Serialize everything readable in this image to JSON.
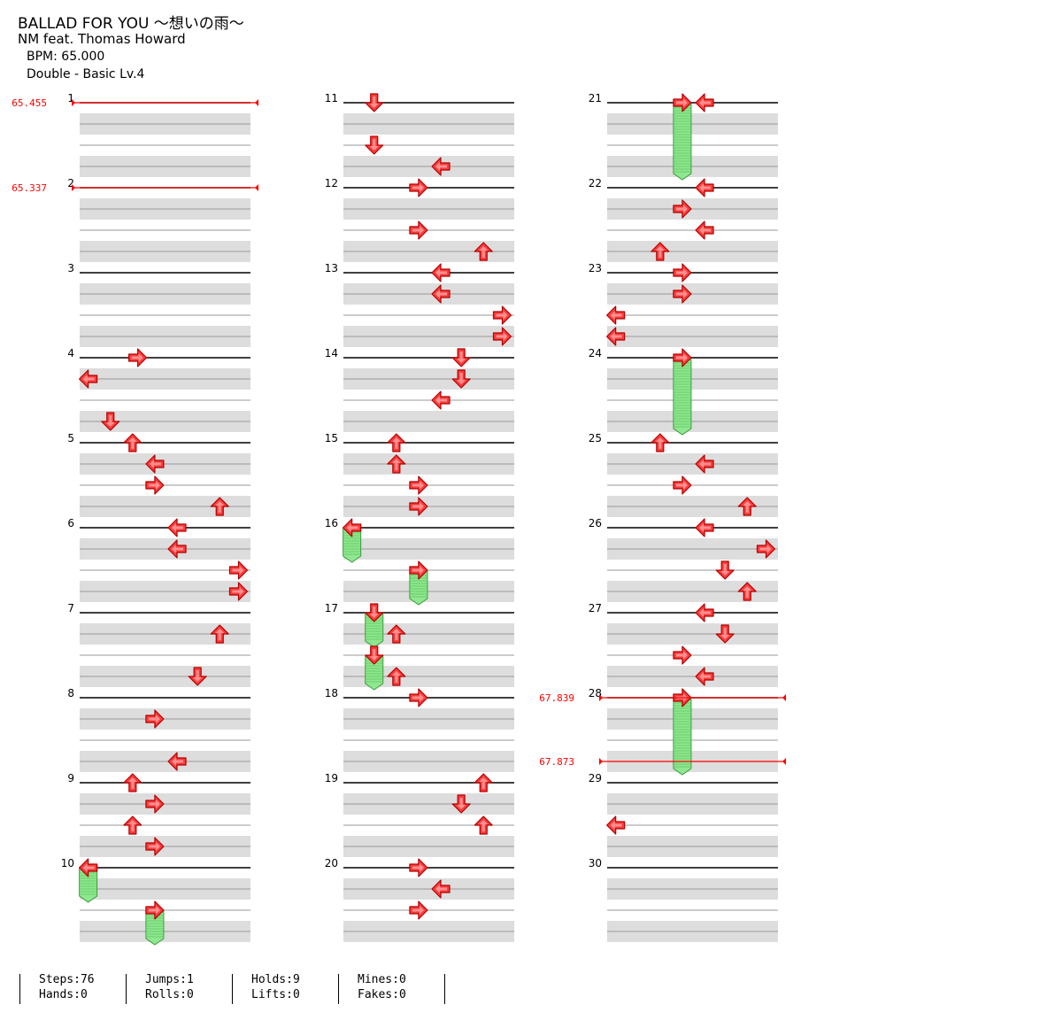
{
  "song": {
    "title": "BALLAD FOR YOU ～想いの雨～",
    "artist": "NM feat. Thomas Howard",
    "bpm_label": "BPM: 65.000",
    "difficulty_label": "Double - Basic  Lv.4"
  },
  "columns": [
    {
      "first_measure": 1,
      "last_measure": 10
    },
    {
      "first_measure": 11,
      "last_measure": 20
    },
    {
      "first_measure": 21,
      "last_measure": 30
    }
  ],
  "measure_labels": [
    "1",
    "2",
    "3",
    "4",
    "5",
    "6",
    "7",
    "8",
    "9",
    "10",
    "11",
    "12",
    "13",
    "14",
    "15",
    "16",
    "17",
    "18",
    "19",
    "20",
    "21",
    "22",
    "23",
    "24",
    "25",
    "26",
    "27",
    "28",
    "29",
    "30"
  ],
  "bpm_changes": [
    {
      "measure": 1,
      "beat": 0,
      "value": "65.455"
    },
    {
      "measure": 2,
      "beat": 0,
      "value": "65.337"
    },
    {
      "measure": 28,
      "beat": 0,
      "value": "67.839"
    },
    {
      "measure": 28,
      "beat": 3,
      "value": "67.873"
    }
  ],
  "notes": [
    {
      "m": 4,
      "b": 0,
      "lane": "R",
      "x": 0.34
    },
    {
      "m": 4,
      "b": 1,
      "lane": "L",
      "x": 0.05
    },
    {
      "m": 4,
      "b": 3,
      "lane": "D",
      "x": 0.18
    },
    {
      "m": 5,
      "b": 0,
      "lane": "U",
      "x": 0.31
    },
    {
      "m": 5,
      "b": 1,
      "lane": "L",
      "x": 0.44
    },
    {
      "m": 5,
      "b": 2,
      "lane": "R",
      "x": 0.44
    },
    {
      "m": 5,
      "b": 3,
      "lane": "U",
      "x": 0.82
    },
    {
      "m": 6,
      "b": 0,
      "lane": "L",
      "x": 0.57
    },
    {
      "m": 6,
      "b": 1,
      "lane": "L",
      "x": 0.57
    },
    {
      "m": 6,
      "b": 2,
      "lane": "R",
      "x": 0.93
    },
    {
      "m": 6,
      "b": 3,
      "lane": "R",
      "x": 0.93
    },
    {
      "m": 7,
      "b": 1,
      "lane": "U",
      "x": 0.82
    },
    {
      "m": 7,
      "b": 3,
      "lane": "D",
      "x": 0.69
    },
    {
      "m": 8,
      "b": 1,
      "lane": "R",
      "x": 0.44
    },
    {
      "m": 8,
      "b": 3,
      "lane": "L",
      "x": 0.57
    },
    {
      "m": 9,
      "b": 0,
      "lane": "U",
      "x": 0.31
    },
    {
      "m": 9,
      "b": 1,
      "lane": "R",
      "x": 0.44
    },
    {
      "m": 9,
      "b": 2,
      "lane": "U",
      "x": 0.31
    },
    {
      "m": 9,
      "b": 3,
      "lane": "R",
      "x": 0.44
    },
    {
      "m": 10,
      "b": 0,
      "lane": "L",
      "x": 0.05,
      "hold": 1
    },
    {
      "m": 10,
      "b": 2,
      "lane": "R",
      "x": 0.44,
      "hold": 1
    },
    {
      "m": 11,
      "b": 0,
      "lane": "D",
      "x": 0.18
    },
    {
      "m": 11,
      "b": 2,
      "lane": "D",
      "x": 0.18
    },
    {
      "m": 11,
      "b": 3,
      "lane": "L",
      "x": 0.57
    },
    {
      "m": 12,
      "b": 0,
      "lane": "R",
      "x": 0.44
    },
    {
      "m": 12,
      "b": 2,
      "lane": "R",
      "x": 0.44
    },
    {
      "m": 12,
      "b": 3,
      "lane": "U",
      "x": 0.82
    },
    {
      "m": 13,
      "b": 0,
      "lane": "L",
      "x": 0.57
    },
    {
      "m": 13,
      "b": 1,
      "lane": "L",
      "x": 0.57
    },
    {
      "m": 13,
      "b": 2,
      "lane": "R",
      "x": 0.93
    },
    {
      "m": 13,
      "b": 3,
      "lane": "R",
      "x": 0.93
    },
    {
      "m": 14,
      "b": 0,
      "lane": "D",
      "x": 0.69
    },
    {
      "m": 14,
      "b": 1,
      "lane": "D",
      "x": 0.69
    },
    {
      "m": 14,
      "b": 2,
      "lane": "L",
      "x": 0.57
    },
    {
      "m": 15,
      "b": 0,
      "lane": "U",
      "x": 0.31
    },
    {
      "m": 15,
      "b": 1,
      "lane": "U",
      "x": 0.31
    },
    {
      "m": 15,
      "b": 2,
      "lane": "R",
      "x": 0.44
    },
    {
      "m": 15,
      "b": 3,
      "lane": "R",
      "x": 0.44
    },
    {
      "m": 16,
      "b": 0,
      "lane": "L",
      "x": 0.05,
      "hold": 1
    },
    {
      "m": 16,
      "b": 2,
      "lane": "R",
      "x": 0.44,
      "hold": 1
    },
    {
      "m": 17,
      "b": 0,
      "lane": "D",
      "x": 0.18,
      "hold": 1
    },
    {
      "m": 17,
      "b": 1,
      "lane": "U",
      "x": 0.31
    },
    {
      "m": 17,
      "b": 2,
      "lane": "D",
      "x": 0.18,
      "hold": 1
    },
    {
      "m": 17,
      "b": 3,
      "lane": "U",
      "x": 0.31
    },
    {
      "m": 18,
      "b": 0,
      "lane": "R",
      "x": 0.44
    },
    {
      "m": 19,
      "b": 0,
      "lane": "U",
      "x": 0.82
    },
    {
      "m": 19,
      "b": 1,
      "lane": "D",
      "x": 0.69
    },
    {
      "m": 19,
      "b": 2,
      "lane": "U",
      "x": 0.82
    },
    {
      "m": 20,
      "b": 0,
      "lane": "R",
      "x": 0.44
    },
    {
      "m": 20,
      "b": 1,
      "lane": "L",
      "x": 0.57
    },
    {
      "m": 20,
      "b": 2,
      "lane": "R",
      "x": 0.44
    },
    {
      "m": 21,
      "b": 0,
      "lane": "R",
      "x": 0.44,
      "hold": 3
    },
    {
      "m": 21,
      "b": 0,
      "lane": "L",
      "x": 0.57
    },
    {
      "m": 22,
      "b": 0,
      "lane": "L",
      "x": 0.57
    },
    {
      "m": 22,
      "b": 1,
      "lane": "R",
      "x": 0.44
    },
    {
      "m": 22,
      "b": 2,
      "lane": "L",
      "x": 0.57
    },
    {
      "m": 22,
      "b": 3,
      "lane": "U",
      "x": 0.31
    },
    {
      "m": 23,
      "b": 0,
      "lane": "R",
      "x": 0.44
    },
    {
      "m": 23,
      "b": 1,
      "lane": "R",
      "x": 0.44
    },
    {
      "m": 23,
      "b": 2,
      "lane": "L",
      "x": 0.05
    },
    {
      "m": 23,
      "b": 3,
      "lane": "L",
      "x": 0.05
    },
    {
      "m": 24,
      "b": 0,
      "lane": "R",
      "x": 0.44,
      "hold": 3
    },
    {
      "m": 25,
      "b": 0,
      "lane": "U",
      "x": 0.31
    },
    {
      "m": 25,
      "b": 1,
      "lane": "L",
      "x": 0.57
    },
    {
      "m": 25,
      "b": 2,
      "lane": "R",
      "x": 0.44
    },
    {
      "m": 25,
      "b": 3,
      "lane": "U",
      "x": 0.82
    },
    {
      "m": 26,
      "b": 0,
      "lane": "L",
      "x": 0.57
    },
    {
      "m": 26,
      "b": 1,
      "lane": "R",
      "x": 0.93
    },
    {
      "m": 26,
      "b": 2,
      "lane": "D",
      "x": 0.69
    },
    {
      "m": 26,
      "b": 3,
      "lane": "U",
      "x": 0.82
    },
    {
      "m": 27,
      "b": 0,
      "lane": "L",
      "x": 0.57
    },
    {
      "m": 27,
      "b": 1,
      "lane": "D",
      "x": 0.69
    },
    {
      "m": 27,
      "b": 2,
      "lane": "R",
      "x": 0.44
    },
    {
      "m": 27,
      "b": 3,
      "lane": "L",
      "x": 0.57
    },
    {
      "m": 28,
      "b": 0,
      "lane": "R",
      "x": 0.44,
      "hold": 3
    },
    {
      "m": 29,
      "b": 2,
      "lane": "L",
      "x": 0.05
    }
  ],
  "stats": [
    {
      "top": "Steps:76",
      "bottom": "Hands:0"
    },
    {
      "top": "Jumps:1",
      "bottom": "Rolls:0"
    },
    {
      "top": "Holds:9",
      "bottom": "Lifts:0"
    },
    {
      "top": "Mines:0",
      "bottom": "Fakes:0"
    }
  ],
  "colors": {
    "arrow_fill": "#ff3b3b",
    "arrow_stroke": "#b00000",
    "hold_fill": "#8fe88f",
    "hold_stroke": "#3a9a3a",
    "beat_band": "#dddddd",
    "bpm_line": "#ff0000"
  }
}
